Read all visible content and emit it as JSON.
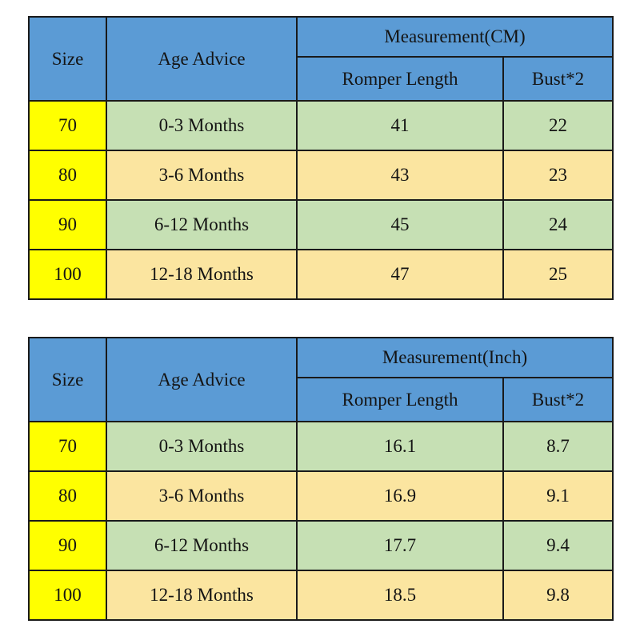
{
  "colors": {
    "header_bg": "#5B9BD5",
    "size_col_bg": "#FFFF00",
    "row_green_bg": "#C6E0B4",
    "row_tan_bg": "#FBE5A0",
    "border_color": "#1a1a1a",
    "text_color": "#141414",
    "page_bg": "#FFFFFF"
  },
  "chart_data": [
    {
      "type": "table",
      "title": "Measurement(CM)",
      "unit": "CM",
      "headers": {
        "size": "Size",
        "age": "Age Advice",
        "measurement_group": "Measurement(CM)",
        "romper_length": "Romper Length",
        "bust_x2": "Bust*2"
      },
      "rows": [
        {
          "size": "70",
          "age": "0-3 Months",
          "romper_length": "41",
          "bust_x2": "22"
        },
        {
          "size": "80",
          "age": "3-6 Months",
          "romper_length": "43",
          "bust_x2": "23"
        },
        {
          "size": "90",
          "age": "6-12 Months",
          "romper_length": "45",
          "bust_x2": "24"
        },
        {
          "size": "100",
          "age": "12-18 Months",
          "romper_length": "47",
          "bust_x2": "25"
        }
      ]
    },
    {
      "type": "table",
      "title": "Measurement(Inch)",
      "unit": "Inch",
      "headers": {
        "size": "Size",
        "age": "Age Advice",
        "measurement_group": "Measurement(Inch)",
        "romper_length": "Romper Length",
        "bust_x2": "Bust*2"
      },
      "rows": [
        {
          "size": "70",
          "age": "0-3 Months",
          "romper_length": "16.1",
          "bust_x2": "8.7"
        },
        {
          "size": "80",
          "age": "3-6 Months",
          "romper_length": "16.9",
          "bust_x2": "9.1"
        },
        {
          "size": "90",
          "age": "6-12 Months",
          "romper_length": "17.7",
          "bust_x2": "9.4"
        },
        {
          "size": "100",
          "age": "12-18 Months",
          "romper_length": "18.5",
          "bust_x2": "9.8"
        }
      ]
    }
  ]
}
